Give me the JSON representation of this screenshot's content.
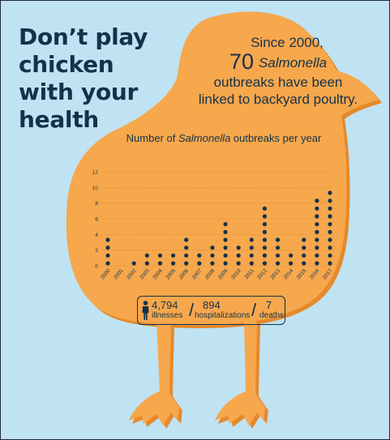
{
  "headline": [
    "Don’t play",
    "chicken",
    "with your",
    "health"
  ],
  "stat": {
    "line1": "Since 2000,",
    "count": "70",
    "pathogen": "Salmonella",
    "line3": "outbreaks have been",
    "line4": "linked to backyard poultry."
  },
  "chart_title": {
    "prefix": "Number of ",
    "italic": "Salmonella",
    "suffix": " outbreaks per year"
  },
  "summary": {
    "illnesses_value": "4,794",
    "illnesses_label": "illnesses",
    "hospitalizations_value": "894",
    "hospitalizations_label": "hospitalizations",
    "deaths_value": "7",
    "deaths_label": "deaths",
    "separator": "/"
  },
  "colors": {
    "background": "#bfe3f3",
    "chick": "#f7a74c",
    "chick_shadow": "#e58a2d",
    "ink": "#14324a",
    "gridline": "#c98a45"
  },
  "icons": [
    "person-icon",
    "chicken-silhouette"
  ],
  "chart_data": {
    "type": "bar",
    "style": "stacked icon dots (one dot per outbreak)",
    "title": "Number of Salmonella outbreaks per year",
    "xlabel": "",
    "ylabel": "",
    "categories": [
      "2000",
      "2001",
      "2002",
      "2003",
      "2004",
      "2005",
      "2006",
      "2007",
      "2008",
      "2009",
      "2010",
      "2011",
      "2012",
      "2013",
      "2014",
      "2015",
      "2016",
      "2017"
    ],
    "values": [
      4,
      0,
      1,
      2,
      2,
      2,
      4,
      2,
      3,
      6,
      3,
      4,
      8,
      4,
      2,
      4,
      9,
      10
    ],
    "yticks": [
      0,
      2,
      4,
      6,
      8,
      10,
      12
    ],
    "ylim": [
      0,
      12
    ],
    "grid": true,
    "legend": "none"
  }
}
